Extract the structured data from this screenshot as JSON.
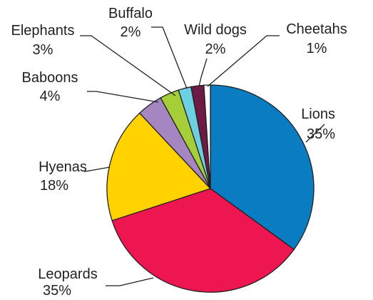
{
  "chart_data": {
    "type": "pie",
    "title": "",
    "slices": [
      {
        "label": "Lions",
        "value": 35,
        "value_label": "35%",
        "color": "#0a7dc2"
      },
      {
        "label": "Leopards",
        "value": 35,
        "value_label": "35%",
        "color": "#ee1651"
      },
      {
        "label": "Hyenas",
        "value": 18,
        "value_label": "18%",
        "color": "#ffd200"
      },
      {
        "label": "Baboons",
        "value": 4,
        "value_label": "4%",
        "color": "#a586c1"
      },
      {
        "label": "Elephants",
        "value": 3,
        "value_label": "3%",
        "color": "#a6ce39"
      },
      {
        "label": "Buffalo",
        "value": 2,
        "value_label": "2%",
        "color": "#6dd0e0"
      },
      {
        "label": "Wild dogs",
        "value": 2,
        "value_label": "2%",
        "color": "#6d1a45"
      },
      {
        "label": "Cheetahs",
        "value": 1,
        "value_label": "1%",
        "color": "#ffffff"
      }
    ],
    "start": "12 o'clock",
    "direction": "clockwise",
    "legend": "none"
  }
}
